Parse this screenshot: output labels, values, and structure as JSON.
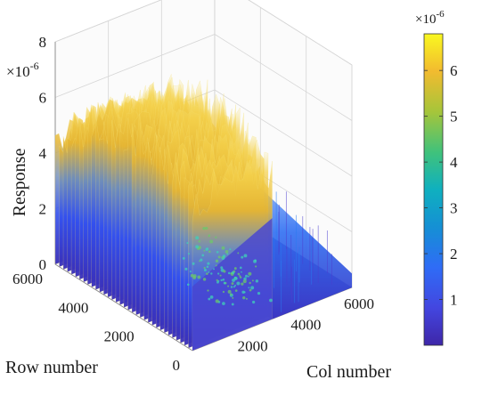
{
  "chart_data": {
    "type": "surface-3d",
    "title": "",
    "zlabel": "Response",
    "xlabel": "Col number",
    "ylabel": "Row number",
    "z_exponent_label": "×10",
    "z_exponent": "-6",
    "z_ticks": [
      "0",
      "2",
      "4",
      "6",
      "8"
    ],
    "zlim": [
      0,
      8
    ],
    "col_ticks": [
      "2000",
      "4000",
      "6000"
    ],
    "row_ticks": [
      "0",
      "2000",
      "4000",
      "6000"
    ],
    "col_range": [
      0,
      6000
    ],
    "row_range": [
      0,
      6000
    ],
    "grid": true,
    "colormap": "parula",
    "colorbar": {
      "exponent_label": "×10",
      "exponent": "-6",
      "ticks": [
        "1",
        "2",
        "3",
        "4",
        "5",
        "6"
      ],
      "range": [
        0,
        6.8
      ]
    },
    "regions": [
      {
        "cols": [
          0,
          3000
        ],
        "rows": [
          0,
          6000
        ],
        "peak_response": 6.6
      },
      {
        "cols": [
          3000,
          6000
        ],
        "rows": [
          0,
          6000
        ],
        "peak_response": 2.0
      }
    ]
  }
}
